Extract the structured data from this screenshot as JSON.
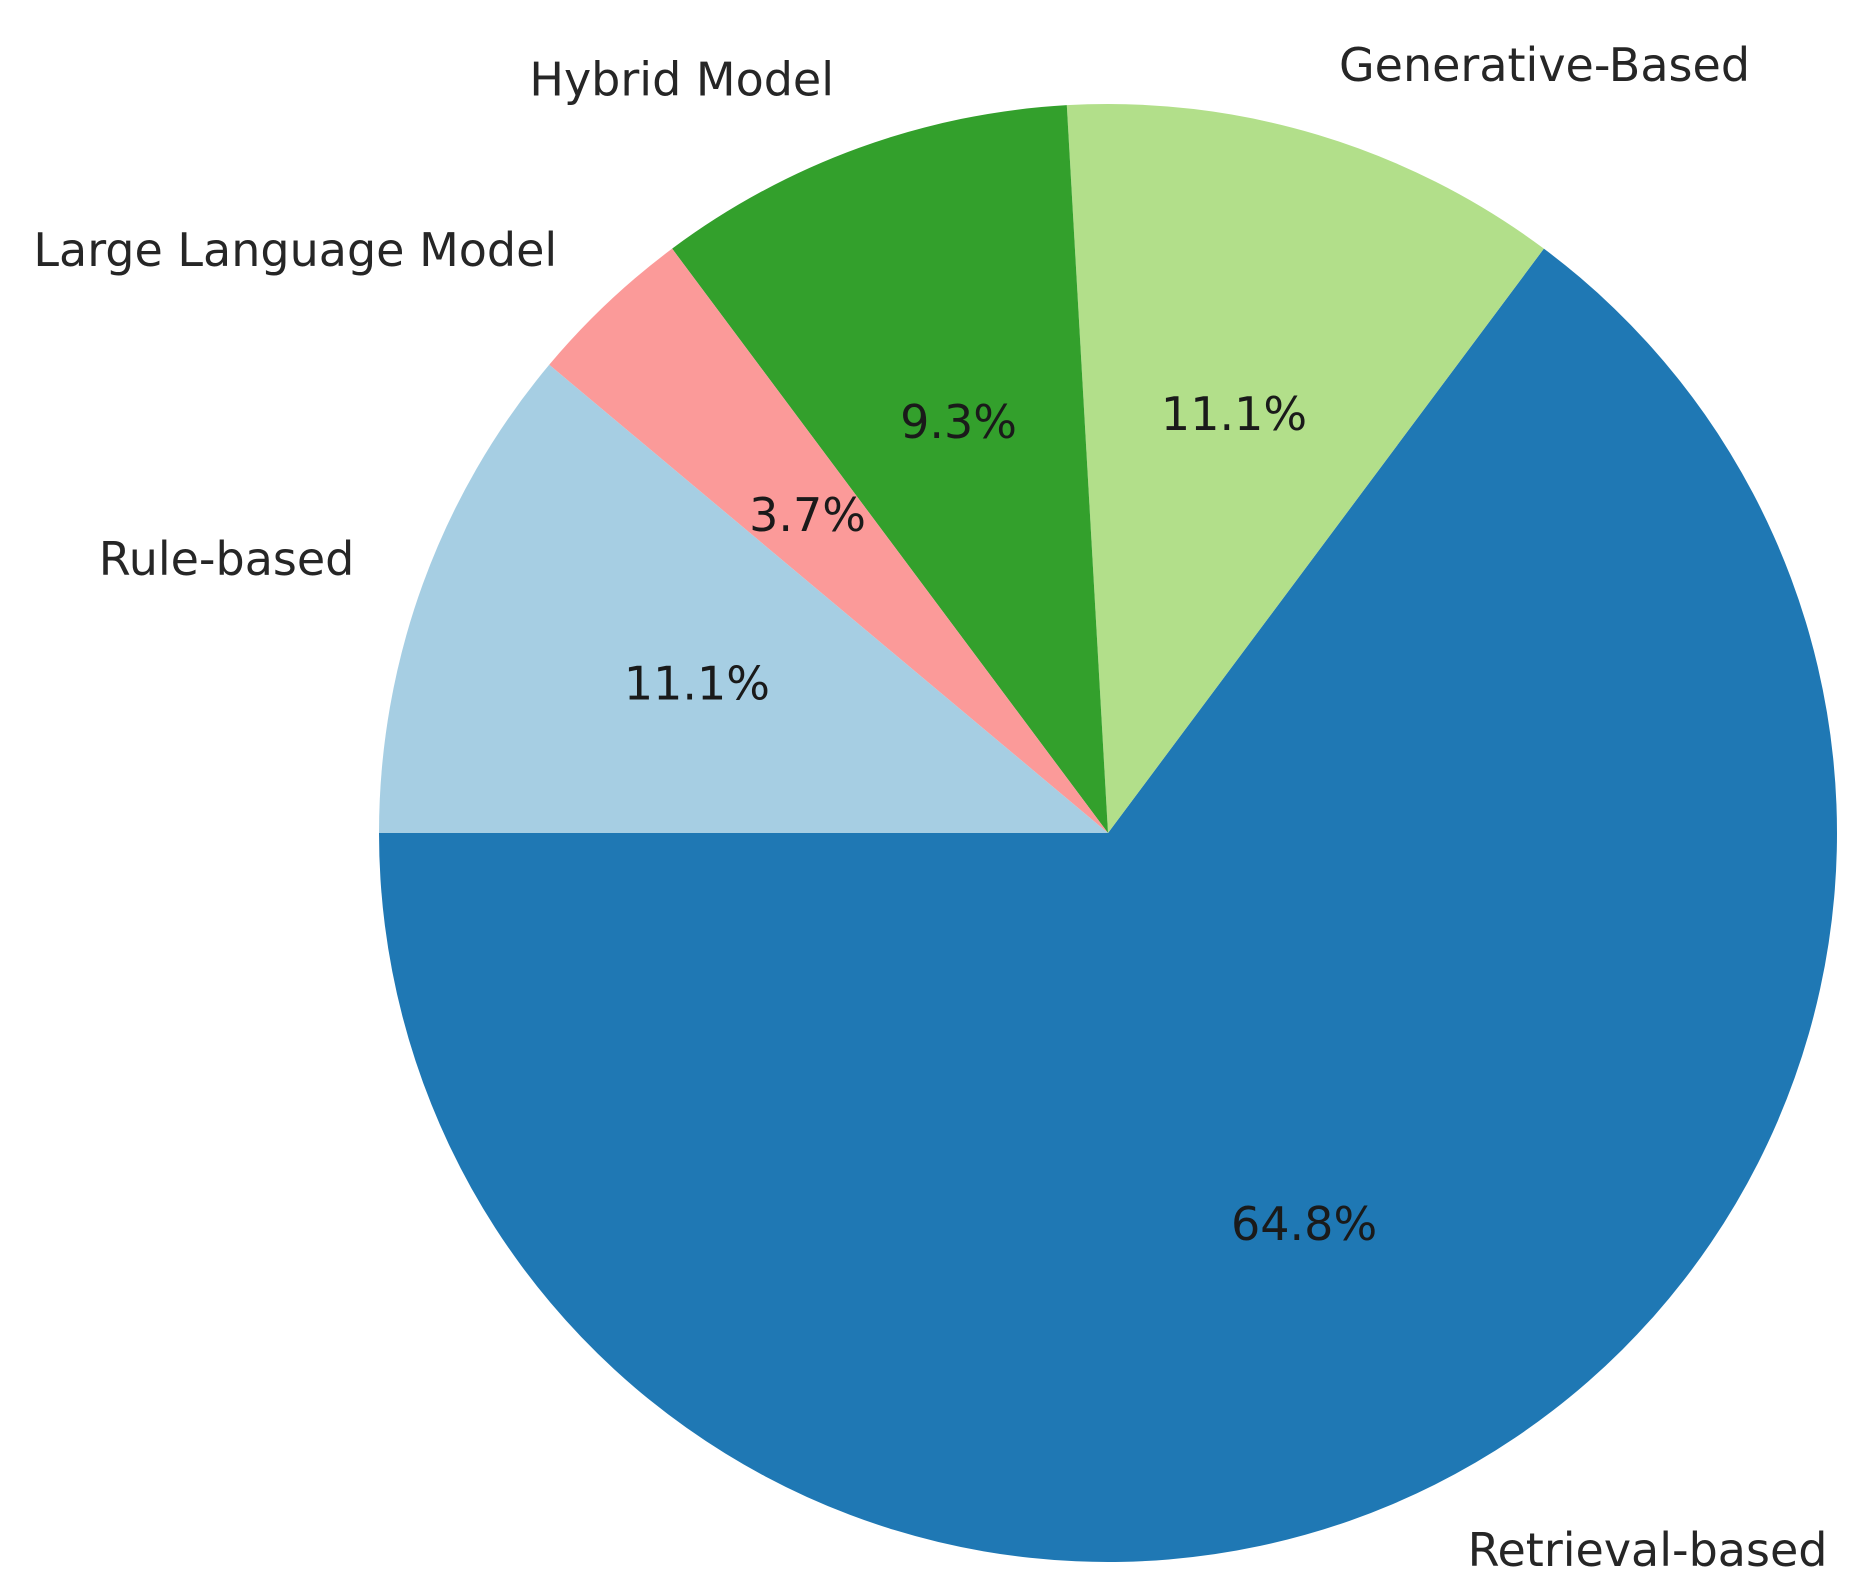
{
  "chart_data": {
    "type": "pie",
    "title": "",
    "slices": [
      {
        "label": "Retrieval-based",
        "value": 64.8,
        "pct_label": "64.8%",
        "color": "#1f78b4"
      },
      {
        "label": "Generative-Based",
        "value": 11.1,
        "pct_label": "11.1%",
        "color": "#b2df8a"
      },
      {
        "label": "Hybrid Model",
        "value": 9.3,
        "pct_label": "9.3%",
        "color": "#33a02c"
      },
      {
        "label": "Large Language Model",
        "value": 3.7,
        "pct_label": "3.7%",
        "color": "#fb9a99"
      },
      {
        "label": "Rule-based",
        "value": 11.1,
        "pct_label": "11.1%",
        "color": "#a6cee3"
      }
    ],
    "start_angle_deg": 180,
    "direction": "counterclockwise",
    "edge_color": "#ffffff"
  }
}
